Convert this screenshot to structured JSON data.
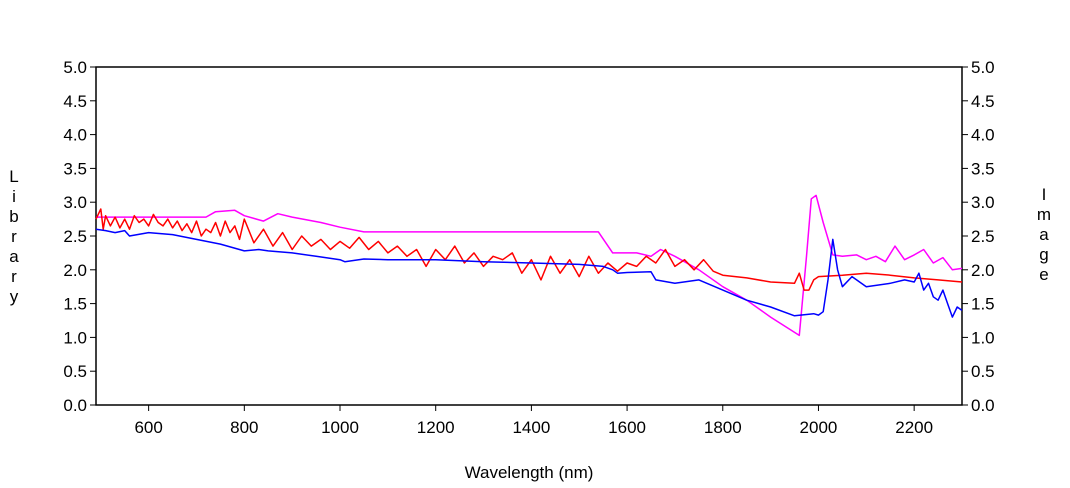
{
  "chart_data": {
    "type": "line",
    "xlabel": "Wavelength (nm)",
    "ylabel_left": "Library",
    "ylabel_right": "Image",
    "xlim": [
      490,
      2300
    ],
    "ylim": [
      0,
      5
    ],
    "x_ticks": [
      600,
      800,
      1000,
      1200,
      1400,
      1600,
      1800,
      2000,
      2200
    ],
    "x_tick_labels": [
      "600",
      "800",
      "1000",
      "1200",
      "1400",
      "1600",
      "1800",
      "2000",
      "2200"
    ],
    "y_ticks": [
      0,
      0.5,
      1,
      1.5,
      2,
      2.5,
      3,
      3.5,
      4,
      4.5,
      5
    ],
    "y_tick_labels": [
      "0.0",
      "0.5",
      "1.0",
      "1.5",
      "2.0",
      "2.5",
      "3.0",
      "3.5",
      "4.0",
      "4.5",
      "5.0"
    ],
    "grid": false,
    "legend": "none",
    "series": [
      {
        "color": "#ff00ff",
        "x": [
          490,
          720,
          740,
          780,
          800,
          840,
          870,
          900,
          960,
          1000,
          1050,
          1100,
          1200,
          1300,
          1400,
          1500,
          1540,
          1570,
          1600,
          1620,
          1650,
          1670,
          1700,
          1750,
          1800,
          1850,
          1900,
          1960,
          1975,
          1985,
          1995,
          2010,
          2030,
          2050,
          2080,
          2100,
          2120,
          2140,
          2160,
          2180,
          2200,
          2220,
          2240,
          2260,
          2280,
          2300
        ],
        "y": [
          2.78,
          2.78,
          2.86,
          2.88,
          2.8,
          2.72,
          2.83,
          2.78,
          2.7,
          2.63,
          2.56,
          2.56,
          2.56,
          2.56,
          2.56,
          2.56,
          2.56,
          2.25,
          2.25,
          2.25,
          2.2,
          2.3,
          2.2,
          2.0,
          1.75,
          1.55,
          1.3,
          1.03,
          2.2,
          3.05,
          3.1,
          2.7,
          2.22,
          2.2,
          2.22,
          2.15,
          2.2,
          2.12,
          2.35,
          2.15,
          2.22,
          2.3,
          2.1,
          2.18,
          2.0,
          2.02
        ]
      },
      {
        "color": "#ff0000",
        "x": [
          490,
          500,
          505,
          510,
          520,
          530,
          540,
          550,
          560,
          570,
          580,
          590,
          600,
          610,
          620,
          630,
          640,
          650,
          660,
          670,
          680,
          690,
          700,
          710,
          720,
          730,
          740,
          750,
          760,
          770,
          780,
          790,
          800,
          820,
          840,
          860,
          880,
          900,
          920,
          940,
          960,
          980,
          1000,
          1020,
          1040,
          1060,
          1080,
          1100,
          1120,
          1140,
          1160,
          1180,
          1200,
          1220,
          1240,
          1260,
          1280,
          1300,
          1320,
          1340,
          1360,
          1380,
          1400,
          1420,
          1440,
          1460,
          1480,
          1500,
          1520,
          1540,
          1560,
          1580,
          1600,
          1620,
          1640,
          1660,
          1680,
          1700,
          1720,
          1740,
          1760,
          1780,
          1800,
          1850,
          1900,
          1950,
          1960,
          1970,
          1980,
          1990,
          2000,
          2050,
          2100,
          2150,
          2200,
          2250,
          2300
        ],
        "y": [
          2.75,
          2.9,
          2.6,
          2.8,
          2.65,
          2.78,
          2.62,
          2.75,
          2.6,
          2.8,
          2.7,
          2.75,
          2.65,
          2.82,
          2.7,
          2.65,
          2.75,
          2.62,
          2.72,
          2.58,
          2.68,
          2.55,
          2.72,
          2.5,
          2.6,
          2.55,
          2.7,
          2.5,
          2.72,
          2.55,
          2.65,
          2.45,
          2.75,
          2.4,
          2.6,
          2.35,
          2.55,
          2.3,
          2.5,
          2.35,
          2.45,
          2.3,
          2.42,
          2.32,
          2.48,
          2.3,
          2.42,
          2.25,
          2.35,
          2.2,
          2.3,
          2.05,
          2.3,
          2.15,
          2.35,
          2.1,
          2.25,
          2.05,
          2.2,
          2.15,
          2.25,
          1.95,
          2.15,
          1.85,
          2.2,
          1.95,
          2.15,
          1.9,
          2.2,
          1.95,
          2.1,
          1.98,
          2.1,
          2.05,
          2.2,
          2.1,
          2.3,
          2.05,
          2.15,
          2.0,
          2.15,
          1.98,
          1.92,
          1.88,
          1.82,
          1.8,
          1.95,
          1.7,
          1.7,
          1.85,
          1.9,
          1.92,
          1.95,
          1.92,
          1.88,
          1.85,
          1.82
        ]
      },
      {
        "color": "#0000ff",
        "x": [
          490,
          510,
          530,
          550,
          560,
          600,
          650,
          700,
          750,
          800,
          830,
          850,
          900,
          950,
          1000,
          1010,
          1050,
          1100,
          1200,
          1300,
          1400,
          1500,
          1550,
          1570,
          1580,
          1600,
          1650,
          1660,
          1700,
          1750,
          1800,
          1850,
          1900,
          1950,
          1990,
          2000,
          2010,
          2020,
          2030,
          2040,
          2050,
          2070,
          2100,
          2150,
          2180,
          2200,
          2210,
          2220,
          2230,
          2240,
          2250,
          2260,
          2270,
          2280,
          2290,
          2300
        ],
        "y": [
          2.6,
          2.58,
          2.55,
          2.58,
          2.5,
          2.55,
          2.52,
          2.45,
          2.38,
          2.28,
          2.3,
          2.28,
          2.25,
          2.2,
          2.15,
          2.12,
          2.16,
          2.15,
          2.15,
          2.12,
          2.1,
          2.08,
          2.05,
          2.0,
          1.95,
          1.96,
          1.97,
          1.85,
          1.8,
          1.85,
          1.7,
          1.55,
          1.45,
          1.32,
          1.35,
          1.33,
          1.38,
          1.85,
          2.45,
          2.0,
          1.75,
          1.9,
          1.75,
          1.8,
          1.85,
          1.82,
          1.95,
          1.7,
          1.8,
          1.6,
          1.55,
          1.7,
          1.5,
          1.3,
          1.45,
          1.4
        ]
      }
    ]
  }
}
